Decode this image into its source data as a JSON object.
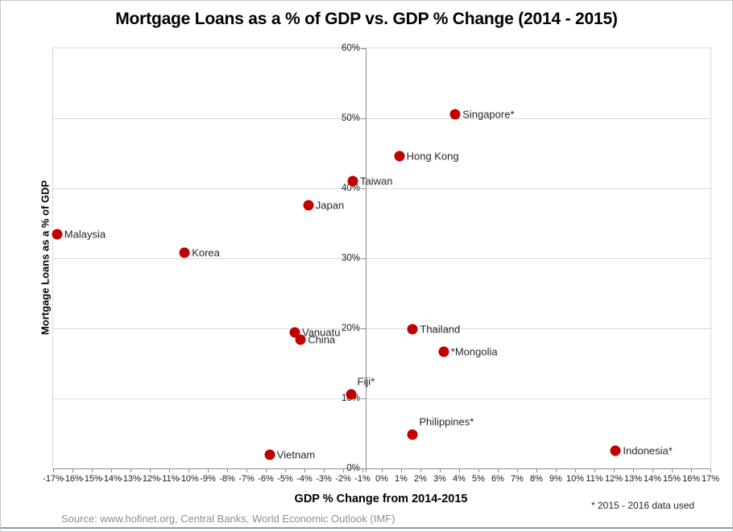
{
  "footnote": "* 2015 - 2016 data used",
  "source": "Source: www.hofinet.org,  Central Banks, World Economic Outlook (IMF)",
  "chart_data": {
    "type": "scatter",
    "title": "Mortgage Loans as a % of GDP vs. GDP % Change (2014 - 2015)",
    "xlabel": "GDP % Change from 2014-2015",
    "ylabel": "Mortgage Loans as a  % of GDP",
    "xlim": [
      -17,
      17
    ],
    "ylim": [
      0,
      60
    ],
    "x_tick_step": 1,
    "y_tick_step": 10,
    "grid": "horizontal-only",
    "legend": "none",
    "marker_color": "#C00000",
    "x_ticks": [
      "-17%",
      "-16%",
      "-15%",
      "-14%",
      "-13%",
      "-12%",
      "-11%",
      "-10%",
      "-9%",
      "-8%",
      "-7%",
      "-6%",
      "-5%",
      "-4%",
      "-3%",
      "-2%",
      "-1%",
      "0%",
      "1%",
      "2%",
      "3%",
      "4%",
      "5%",
      "6%",
      "7%",
      "8%",
      "9%",
      "10%",
      "11%",
      "12%",
      "13%",
      "14%",
      "15%",
      "16%",
      "17%"
    ],
    "y_ticks": [
      "0%",
      "10%",
      "20%",
      "30%",
      "40%",
      "50%",
      "60%"
    ],
    "points": [
      {
        "label": "Malaysia",
        "x": -16.8,
        "y": 33.4,
        "label_pos": "right"
      },
      {
        "label": "Korea",
        "x": -10.2,
        "y": 30.8,
        "label_pos": "right"
      },
      {
        "label": "Japan",
        "x": -3.8,
        "y": 37.6,
        "label_pos": "right"
      },
      {
        "label": "Taiwan",
        "x": -1.5,
        "y": 41.0,
        "label_pos": "right"
      },
      {
        "label": "Hong Kong",
        "x": 0.9,
        "y": 44.6,
        "label_pos": "right"
      },
      {
        "label": "Singapore*",
        "x": 3.8,
        "y": 50.6,
        "label_pos": "right"
      },
      {
        "label": "Vanuatu",
        "x": -4.5,
        "y": 19.4,
        "label_pos": "right"
      },
      {
        "label": "China",
        "x": -4.2,
        "y": 18.4,
        "label_pos": "right"
      },
      {
        "label": "Thailand",
        "x": 1.6,
        "y": 19.9,
        "label_pos": "right"
      },
      {
        "label": "*Mongolia",
        "x": 3.2,
        "y": 16.7,
        "label_pos": "right"
      },
      {
        "label": "Fiji*",
        "x": -1.6,
        "y": 10.6,
        "label_pos": "above-right"
      },
      {
        "label": "Philippines*",
        "x": 1.6,
        "y": 4.8,
        "label_pos": "above-right"
      },
      {
        "label": "Vietnam",
        "x": -5.8,
        "y": 2.0,
        "label_pos": "right"
      },
      {
        "label": "Indonesia*",
        "x": 12.1,
        "y": 2.5,
        "label_pos": "right"
      }
    ]
  }
}
